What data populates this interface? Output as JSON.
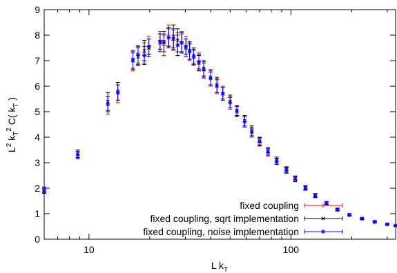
{
  "chart_data": {
    "type": "scatter",
    "title": "",
    "xlabel": "L k_T",
    "ylabel": "L^2 k_T^2 C(k_T)",
    "x_scale": "log",
    "xlim": [
      6,
      330
    ],
    "ylim": [
      0,
      9
    ],
    "x_ticks": [
      10,
      100
    ],
    "y_ticks": [
      0,
      1,
      2,
      3,
      4,
      5,
      6,
      7,
      8,
      9
    ],
    "grid": false,
    "legend_position": "bottom-right",
    "series": [
      {
        "name": "fixed coupling",
        "color": "#ff0000",
        "marker": "plus",
        "points": [
          [
            6.0,
            1.95,
            0.1
          ],
          [
            8.8,
            3.3,
            0.15
          ],
          [
            12.4,
            5.25,
            0.35
          ],
          [
            13.9,
            5.7,
            0.35
          ],
          [
            16.5,
            6.95,
            0.35
          ],
          [
            17.5,
            7.2,
            0.35
          ],
          [
            18.8,
            7.3,
            0.4
          ],
          [
            19.8,
            7.6,
            0.35
          ],
          [
            22.5,
            7.8,
            0.35
          ],
          [
            23.5,
            7.6,
            0.4
          ],
          [
            24.8,
            8.0,
            0.4
          ],
          [
            26.2,
            7.8,
            0.4
          ],
          [
            27.5,
            7.65,
            0.45
          ],
          [
            28.8,
            7.75,
            0.4
          ],
          [
            30.2,
            7.6,
            0.35
          ],
          [
            31.5,
            7.35,
            0.35
          ],
          [
            33.0,
            7.1,
            0.3
          ],
          [
            35.0,
            7.0,
            0.3
          ],
          [
            37.0,
            6.6,
            0.3
          ],
          [
            40.0,
            6.3,
            0.3
          ],
          [
            43.0,
            6.0,
            0.3
          ],
          [
            46.0,
            5.75,
            0.25
          ],
          [
            50.0,
            5.35,
            0.25
          ],
          [
            54.0,
            5.0,
            0.2
          ],
          [
            59.0,
            4.6,
            0.2
          ],
          [
            64.0,
            4.2,
            0.2
          ],
          [
            70.0,
            3.8,
            0.15
          ],
          [
            77.0,
            3.4,
            0.15
          ],
          [
            85.0,
            3.05,
            0.12
          ],
          [
            95.0,
            2.7,
            0.12
          ],
          [
            105.0,
            2.35,
            0.1
          ],
          [
            118.0,
            2.0,
            0.08
          ],
          [
            132.0,
            1.7,
            0.07
          ],
          [
            150.0,
            1.4,
            0.06
          ],
          [
            170.0,
            1.15,
            0.05
          ],
          [
            195.0,
            0.95,
            0.04
          ],
          [
            225.0,
            0.8,
            0.03
          ],
          [
            260.0,
            0.68,
            0.03
          ],
          [
            300.0,
            0.58,
            0.02
          ],
          [
            330.0,
            0.53,
            0.02
          ]
        ]
      },
      {
        "name": "fixed coupling, sqrt implementation",
        "color": "#000000",
        "marker": "cross",
        "points": [
          [
            6.0,
            1.9,
            0.1
          ],
          [
            8.8,
            3.35,
            0.15
          ],
          [
            12.4,
            5.4,
            0.35
          ],
          [
            13.9,
            5.8,
            0.35
          ],
          [
            16.5,
            7.0,
            0.35
          ],
          [
            17.5,
            7.15,
            0.35
          ],
          [
            18.8,
            7.4,
            0.4
          ],
          [
            19.8,
            7.5,
            0.35
          ],
          [
            22.5,
            7.7,
            0.35
          ],
          [
            23.5,
            7.75,
            0.4
          ],
          [
            24.8,
            7.9,
            0.4
          ],
          [
            26.2,
            7.95,
            0.45
          ],
          [
            27.5,
            7.8,
            0.45
          ],
          [
            28.8,
            7.7,
            0.4
          ],
          [
            30.2,
            7.5,
            0.35
          ],
          [
            31.5,
            7.4,
            0.35
          ],
          [
            33.0,
            7.2,
            0.3
          ],
          [
            35.0,
            6.9,
            0.3
          ],
          [
            37.0,
            6.7,
            0.3
          ],
          [
            40.0,
            6.35,
            0.3
          ],
          [
            43.0,
            6.05,
            0.3
          ],
          [
            46.0,
            5.7,
            0.25
          ],
          [
            50.0,
            5.4,
            0.25
          ],
          [
            54.0,
            5.05,
            0.2
          ],
          [
            59.0,
            4.65,
            0.2
          ],
          [
            64.0,
            4.25,
            0.2
          ],
          [
            70.0,
            3.85,
            0.15
          ],
          [
            77.0,
            3.45,
            0.15
          ],
          [
            85.0,
            3.1,
            0.12
          ],
          [
            95.0,
            2.72,
            0.12
          ],
          [
            105.0,
            2.38,
            0.1
          ],
          [
            118.0,
            2.02,
            0.08
          ],
          [
            132.0,
            1.72,
            0.07
          ],
          [
            150.0,
            1.42,
            0.06
          ],
          [
            170.0,
            1.17,
            0.05
          ],
          [
            195.0,
            0.96,
            0.04
          ],
          [
            225.0,
            0.81,
            0.03
          ],
          [
            260.0,
            0.69,
            0.03
          ],
          [
            300.0,
            0.59,
            0.02
          ],
          [
            330.0,
            0.54,
            0.02
          ]
        ]
      },
      {
        "name": "fixed coupling, noise implementation",
        "color": "#0000ff",
        "marker": "star",
        "points": [
          [
            6.0,
            1.92,
            0.1
          ],
          [
            8.8,
            3.3,
            0.15
          ],
          [
            12.4,
            5.3,
            0.3
          ],
          [
            13.9,
            5.75,
            0.3
          ],
          [
            16.5,
            7.05,
            0.35
          ],
          [
            17.5,
            7.25,
            0.35
          ],
          [
            18.8,
            7.2,
            0.35
          ],
          [
            19.8,
            7.55,
            0.3
          ],
          [
            22.5,
            7.75,
            0.3
          ],
          [
            23.5,
            7.7,
            0.35
          ],
          [
            24.8,
            7.9,
            0.35
          ],
          [
            26.2,
            7.85,
            0.4
          ],
          [
            27.5,
            7.6,
            0.4
          ],
          [
            28.8,
            7.7,
            0.35
          ],
          [
            30.2,
            7.55,
            0.3
          ],
          [
            31.5,
            7.35,
            0.3
          ],
          [
            33.0,
            7.15,
            0.3
          ],
          [
            35.0,
            6.95,
            0.3
          ],
          [
            37.0,
            6.65,
            0.3
          ],
          [
            40.0,
            6.3,
            0.25
          ],
          [
            43.0,
            6.0,
            0.25
          ],
          [
            46.0,
            5.7,
            0.25
          ],
          [
            50.0,
            5.35,
            0.2
          ],
          [
            54.0,
            5.0,
            0.2
          ],
          [
            59.0,
            4.6,
            0.2
          ],
          [
            64.0,
            4.2,
            0.15
          ],
          [
            70.0,
            3.82,
            0.15
          ],
          [
            77.0,
            3.42,
            0.12
          ],
          [
            85.0,
            3.05,
            0.12
          ],
          [
            95.0,
            2.7,
            0.1
          ],
          [
            105.0,
            2.36,
            0.1
          ],
          [
            118.0,
            2.0,
            0.08
          ],
          [
            132.0,
            1.7,
            0.07
          ],
          [
            150.0,
            1.41,
            0.06
          ],
          [
            170.0,
            1.16,
            0.05
          ],
          [
            195.0,
            0.95,
            0.04
          ],
          [
            225.0,
            0.8,
            0.03
          ],
          [
            260.0,
            0.68,
            0.03
          ],
          [
            300.0,
            0.58,
            0.02
          ],
          [
            330.0,
            0.53,
            0.02
          ]
        ]
      }
    ]
  }
}
